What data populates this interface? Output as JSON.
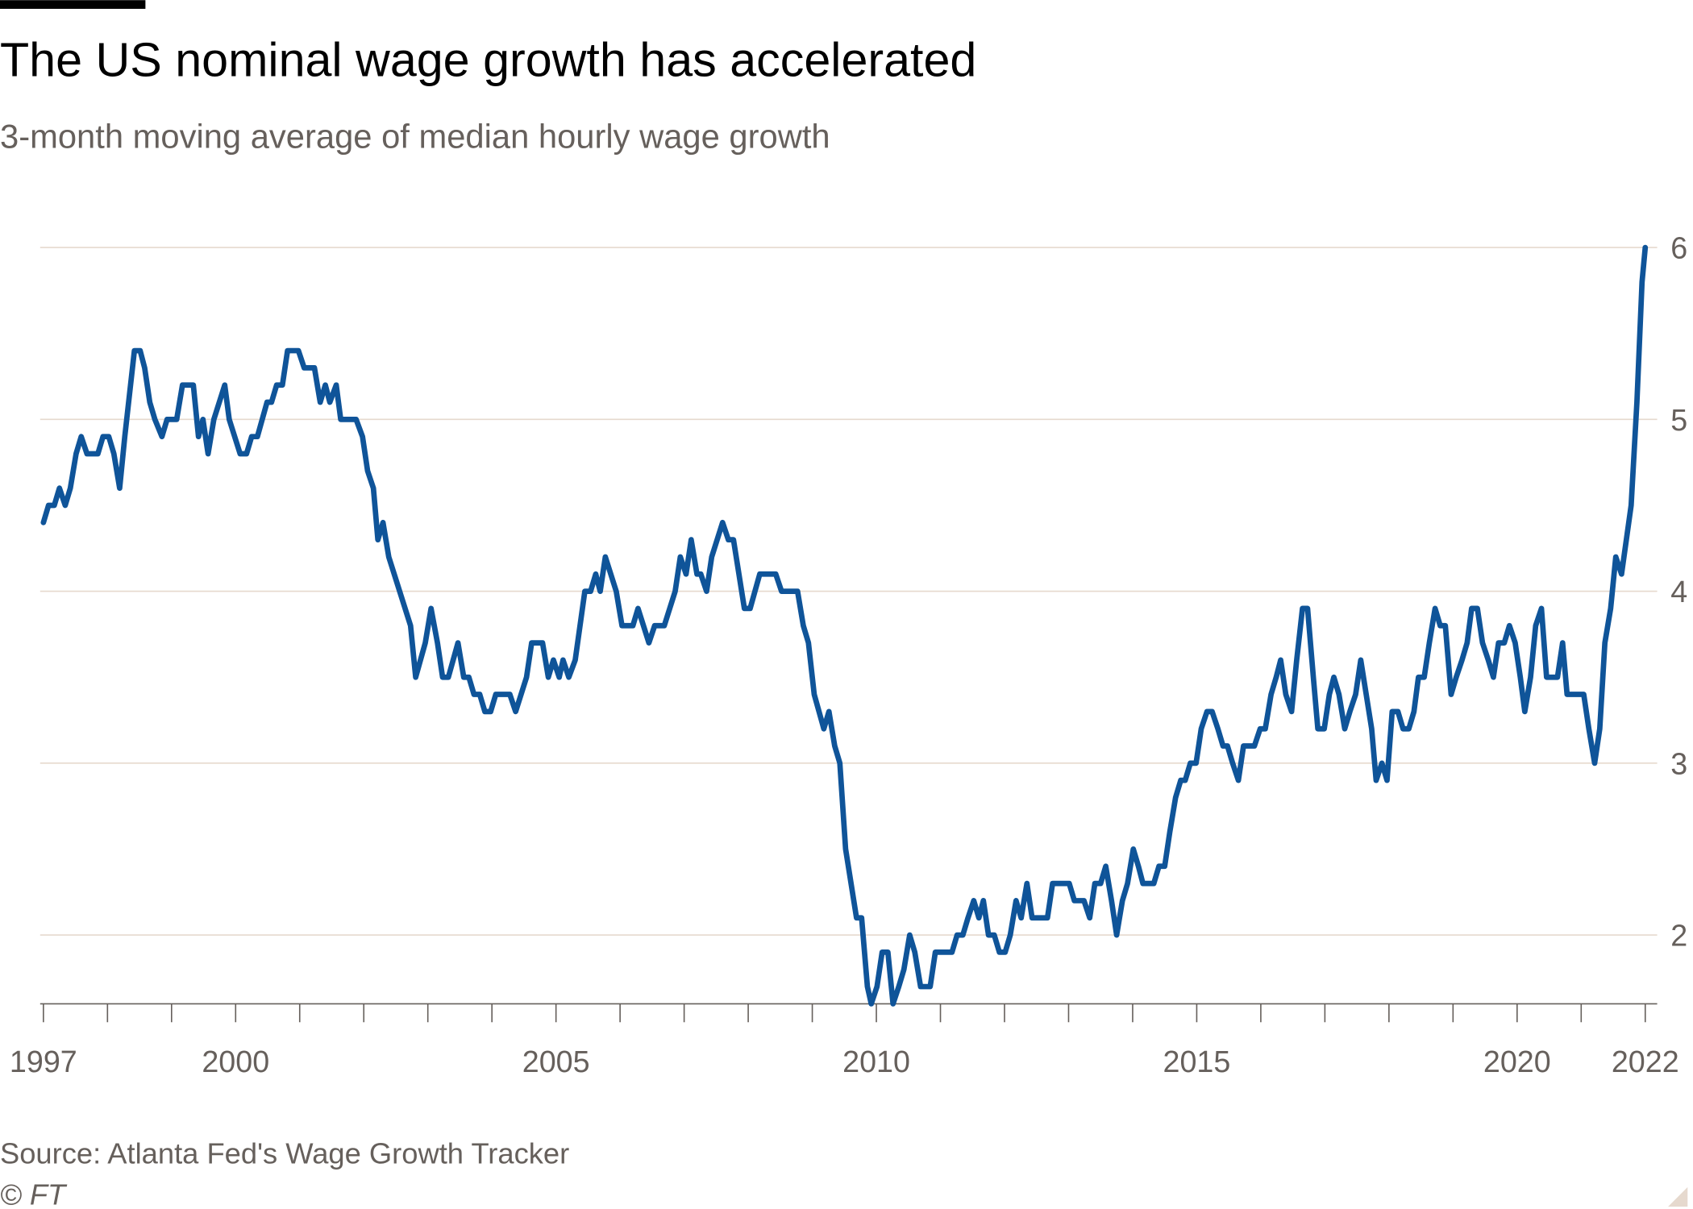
{
  "chart_data": {
    "type": "line",
    "title": "The US nominal wage growth has accelerated",
    "subtitle": "3-month moving average of median hourly wage growth",
    "source": "Source: Atlanta Fed's Wage Growth Tracker",
    "copyright": "© FT",
    "color": "#0f5499",
    "grid": true,
    "y_axis_side": "right",
    "xlim": [
      1997,
      2022
    ],
    "xticks": [
      1997,
      2000,
      2005,
      2010,
      2015,
      2020,
      2022
    ],
    "xminor_ticks": [
      1998,
      1999,
      2001,
      2002,
      2003,
      2004,
      2006,
      2007,
      2008,
      2009,
      2011,
      2012,
      2013,
      2014,
      2016,
      2017,
      2018,
      2019,
      2021
    ],
    "ylim": [
      1.6,
      6
    ],
    "yticks": [
      2,
      3,
      4,
      5,
      6
    ],
    "x": [
      1997.0,
      1997.08,
      1997.17,
      1997.25,
      1997.34,
      1997.42,
      1997.51,
      1997.59,
      1997.68,
      1997.85,
      1997.93,
      1998.02,
      1998.1,
      1998.19,
      1998.27,
      1998.36,
      1998.42,
      1998.51,
      1998.58,
      1998.66,
      1998.74,
      1998.85,
      1998.93,
      1999.08,
      1999.17,
      1999.34,
      1999.42,
      1999.49,
      1999.57,
      1999.66,
      1999.83,
      1999.9,
      2000.07,
      2000.17,
      2000.25,
      2000.34,
      2000.49,
      2000.56,
      2000.64,
      2000.73,
      2000.81,
      2000.98,
      2001.07,
      2001.23,
      2001.32,
      2001.4,
      2001.47,
      2001.57,
      2001.64,
      2001.88,
      2001.98,
      2002.06,
      2002.15,
      2002.22,
      2002.3,
      2002.39,
      2002.56,
      2002.73,
      2002.81,
      2002.96,
      2003.05,
      2003.15,
      2003.23,
      2003.32,
      2003.47,
      2003.56,
      2003.64,
      2003.72,
      2003.81,
      2003.89,
      2003.98,
      2004.06,
      2004.28,
      2004.37,
      2004.54,
      2004.62,
      2004.79,
      2004.88,
      2004.96,
      2005.05,
      2005.11,
      2005.2,
      2005.3,
      2005.45,
      2005.54,
      2005.62,
      2005.69,
      2005.77,
      2005.94,
      2006.03,
      2006.2,
      2006.28,
      2006.45,
      2006.54,
      2006.69,
      2006.86,
      2006.94,
      2007.03,
      2007.11,
      2007.2,
      2007.26,
      2007.35,
      2007.43,
      2007.6,
      2007.69,
      2007.77,
      2007.94,
      2008.03,
      2008.18,
      2008.43,
      2008.52,
      2008.77,
      2008.86,
      2008.94,
      2009.03,
      2009.18,
      2009.26,
      2009.35,
      2009.43,
      2009.52,
      2009.69,
      2009.77,
      2009.86,
      2009.92,
      2010.01,
      2010.09,
      2010.18,
      2010.26,
      2010.35,
      2010.43,
      2010.52,
      2010.6,
      2010.69,
      2010.84,
      2010.92,
      2011.18,
      2011.26,
      2011.35,
      2011.43,
      2011.52,
      2011.6,
      2011.67,
      2011.75,
      2011.84,
      2011.92,
      2012.01,
      2012.09,
      2012.18,
      2012.26,
      2012.35,
      2012.43,
      2012.67,
      2012.75,
      2013.01,
      2013.09,
      2013.24,
      2013.33,
      2013.41,
      2013.5,
      2013.58,
      2013.67,
      2013.75,
      2013.84,
      2013.92,
      2014.01,
      2014.09,
      2014.16,
      2014.33,
      2014.41,
      2014.5,
      2014.58,
      2014.67,
      2014.75,
      2014.82,
      2014.9,
      2014.99,
      2015.07,
      2015.16,
      2015.24,
      2015.33,
      2015.41,
      2015.48,
      2015.56,
      2015.65,
      2015.73,
      2015.9,
      2015.99,
      2016.07,
      2016.16,
      2016.24,
      2016.31,
      2016.39,
      2016.48,
      2016.56,
      2016.65,
      2016.73,
      2016.82,
      2016.89,
      2016.99,
      2017.07,
      2017.14,
      2017.22,
      2017.31,
      2017.39,
      2017.48,
      2017.56,
      2017.73,
      2017.8,
      2017.89,
      2017.97,
      2018.05,
      2018.14,
      2018.22,
      2018.31,
      2018.39,
      2018.46,
      2018.55,
      2018.63,
      2018.72,
      2018.8,
      2018.88,
      2018.97,
      2019.05,
      2019.14,
      2019.22,
      2019.29,
      2019.38,
      2019.46,
      2019.55,
      2019.63,
      2019.71,
      2019.8,
      2019.88,
      2019.97,
      2020.05,
      2020.12,
      2020.21,
      2020.29,
      2020.38,
      2020.46,
      2020.63,
      2020.71,
      2020.78,
      2021.04,
      2021.12,
      2021.21,
      2021.29,
      2021.37,
      2021.46,
      2021.54,
      2021.63,
      2021.78,
      2021.87,
      2021.95,
      2022.0
    ],
    "values": [
      4.4,
      4.5,
      4.5,
      4.6,
      4.5,
      4.6,
      4.8,
      4.9,
      4.8,
      4.8,
      4.9,
      4.9,
      4.8,
      4.6,
      4.9,
      5.2,
      5.4,
      5.4,
      5.3,
      5.1,
      5.0,
      4.9,
      5.0,
      5.0,
      5.2,
      5.2,
      4.9,
      5.0,
      4.8,
      5.0,
      5.2,
      5.0,
      4.8,
      4.8,
      4.9,
      4.9,
      5.1,
      5.1,
      5.2,
      5.2,
      5.4,
      5.4,
      5.3,
      5.3,
      5.1,
      5.2,
      5.1,
      5.2,
      5.0,
      5.0,
      4.9,
      4.7,
      4.6,
      4.3,
      4.4,
      4.2,
      4.0,
      3.8,
      3.5,
      3.7,
      3.9,
      3.7,
      3.5,
      3.5,
      3.7,
      3.5,
      3.5,
      3.4,
      3.4,
      3.3,
      3.3,
      3.4,
      3.4,
      3.3,
      3.5,
      3.7,
      3.7,
      3.5,
      3.6,
      3.5,
      3.6,
      3.5,
      3.6,
      4.0,
      4.0,
      4.1,
      4.0,
      4.2,
      4.0,
      3.8,
      3.8,
      3.9,
      3.7,
      3.8,
      3.8,
      4.0,
      4.2,
      4.1,
      4.3,
      4.1,
      4.1,
      4.0,
      4.2,
      4.4,
      4.3,
      4.3,
      3.9,
      3.9,
      4.1,
      4.1,
      4.0,
      4.0,
      3.8,
      3.7,
      3.4,
      3.2,
      3.3,
      3.1,
      3.0,
      2.5,
      2.1,
      2.1,
      1.7,
      1.6,
      1.7,
      1.9,
      1.9,
      1.6,
      1.7,
      1.8,
      2.0,
      1.9,
      1.7,
      1.7,
      1.9,
      1.9,
      2.0,
      2.0,
      2.1,
      2.2,
      2.1,
      2.2,
      2.0,
      2.0,
      1.9,
      1.9,
      2.0,
      2.2,
      2.1,
      2.3,
      2.1,
      2.1,
      2.3,
      2.3,
      2.2,
      2.2,
      2.1,
      2.3,
      2.3,
      2.4,
      2.2,
      2.0,
      2.2,
      2.3,
      2.5,
      2.4,
      2.3,
      2.3,
      2.4,
      2.4,
      2.6,
      2.8,
      2.9,
      2.9,
      3.0,
      3.0,
      3.2,
      3.3,
      3.3,
      3.2,
      3.1,
      3.1,
      3.0,
      2.9,
      3.1,
      3.1,
      3.2,
      3.2,
      3.4,
      3.5,
      3.6,
      3.4,
      3.3,
      3.6,
      3.9,
      3.9,
      3.5,
      3.2,
      3.2,
      3.4,
      3.5,
      3.4,
      3.2,
      3.3,
      3.4,
      3.6,
      3.2,
      2.9,
      3.0,
      2.9,
      3.3,
      3.3,
      3.2,
      3.2,
      3.3,
      3.5,
      3.5,
      3.7,
      3.9,
      3.8,
      3.8,
      3.4,
      3.5,
      3.6,
      3.7,
      3.9,
      3.9,
      3.7,
      3.6,
      3.5,
      3.7,
      3.7,
      3.8,
      3.7,
      3.5,
      3.3,
      3.5,
      3.8,
      3.9,
      3.5,
      3.5,
      3.7,
      3.4,
      3.4,
      3.2,
      3.0,
      3.2,
      3.7,
      3.9,
      4.2,
      4.1,
      4.5,
      5.1,
      5.8,
      6.0
    ]
  }
}
